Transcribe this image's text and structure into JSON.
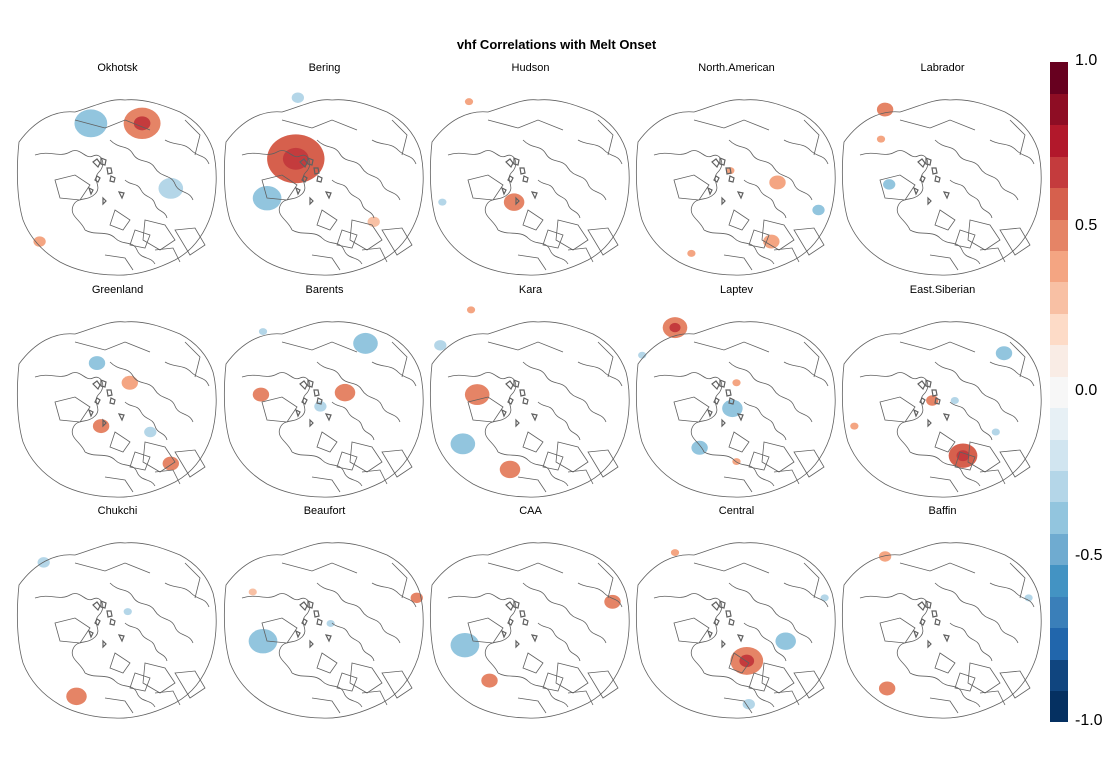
{
  "title": "vhf Correlations with Melt Onset",
  "colorbar": {
    "ticks": [
      "1.0",
      "0.5",
      "0.0",
      "-0.5",
      "-1.0"
    ],
    "tick_values": [
      1.0,
      0.5,
      0.0,
      -0.5,
      -1.0
    ],
    "range": [
      -1.0,
      1.0
    ],
    "colors": [
      "#053061",
      "#10457f",
      "#2166ac",
      "#3a7fb9",
      "#4393c3",
      "#6fabd0",
      "#92c5de",
      "#b4d6e8",
      "#d1e5f0",
      "#e7f0f5",
      "#f7f7f7",
      "#f9ece5",
      "#fddbc7",
      "#f8c0a4",
      "#f4a582",
      "#e58466",
      "#d6604d",
      "#c43b3d",
      "#b2182b",
      "#8e0d24",
      "#67001f"
    ]
  },
  "chart_data": {
    "type": "heatmap",
    "title": "vhf Correlations with Melt Onset",
    "value_range": [
      -1.0,
      1.0
    ],
    "panels": [
      {
        "name": "Okhotsk",
        "blobs": [
          {
            "cx": 0.62,
            "cy": 0.22,
            "r": 0.09,
            "v": 0.5
          },
          {
            "cx": 0.37,
            "cy": 0.22,
            "r": 0.08,
            "v": -0.4
          },
          {
            "cx": 0.76,
            "cy": 0.55,
            "r": 0.06,
            "v": -0.35
          },
          {
            "cx": 0.12,
            "cy": 0.82,
            "r": 0.03,
            "v": 0.4
          }
        ]
      },
      {
        "name": "Bering",
        "blobs": [
          {
            "cx": 0.36,
            "cy": 0.4,
            "r": 0.14,
            "v": 0.55
          },
          {
            "cx": 0.22,
            "cy": 0.6,
            "r": 0.07,
            "v": -0.4
          },
          {
            "cx": 0.37,
            "cy": 0.09,
            "r": 0.03,
            "v": -0.3
          },
          {
            "cx": 0.74,
            "cy": 0.72,
            "r": 0.03,
            "v": 0.3
          }
        ]
      },
      {
        "name": "Hudson",
        "blobs": [
          {
            "cx": 0.42,
            "cy": 0.62,
            "r": 0.05,
            "v": 0.5
          },
          {
            "cx": 0.2,
            "cy": 0.11,
            "r": 0.02,
            "v": 0.4
          },
          {
            "cx": 0.07,
            "cy": 0.62,
            "r": 0.02,
            "v": -0.35
          }
        ]
      },
      {
        "name": "North.American",
        "blobs": [
          {
            "cx": 0.7,
            "cy": 0.52,
            "r": 0.04,
            "v": 0.4
          },
          {
            "cx": 0.47,
            "cy": 0.46,
            "r": 0.02,
            "v": 0.4
          },
          {
            "cx": 0.9,
            "cy": 0.66,
            "r": 0.03,
            "v": -0.4
          },
          {
            "cx": 0.67,
            "cy": 0.82,
            "r": 0.04,
            "v": 0.4
          },
          {
            "cx": 0.28,
            "cy": 0.88,
            "r": 0.02,
            "v": 0.35
          }
        ]
      },
      {
        "name": "Labrador",
        "blobs": [
          {
            "cx": 0.22,
            "cy": 0.15,
            "r": 0.04,
            "v": 0.45
          },
          {
            "cx": 0.2,
            "cy": 0.3,
            "r": 0.02,
            "v": 0.4
          },
          {
            "cx": 0.24,
            "cy": 0.53,
            "r": 0.03,
            "v": -0.4
          }
        ]
      },
      {
        "name": "Greenland",
        "blobs": [
          {
            "cx": 0.4,
            "cy": 0.31,
            "r": 0.04,
            "v": -0.4
          },
          {
            "cx": 0.56,
            "cy": 0.41,
            "r": 0.04,
            "v": 0.4
          },
          {
            "cx": 0.42,
            "cy": 0.63,
            "r": 0.04,
            "v": 0.5
          },
          {
            "cx": 0.66,
            "cy": 0.66,
            "r": 0.03,
            "v": -0.35
          },
          {
            "cx": 0.76,
            "cy": 0.82,
            "r": 0.04,
            "v": 0.45
          }
        ]
      },
      {
        "name": "Barents",
        "blobs": [
          {
            "cx": 0.7,
            "cy": 0.21,
            "r": 0.06,
            "v": -0.4
          },
          {
            "cx": 0.6,
            "cy": 0.46,
            "r": 0.05,
            "v": 0.45
          },
          {
            "cx": 0.19,
            "cy": 0.47,
            "r": 0.04,
            "v": 0.45
          },
          {
            "cx": 0.48,
            "cy": 0.53,
            "r": 0.03,
            "v": -0.35
          },
          {
            "cx": 0.2,
            "cy": 0.15,
            "r": 0.02,
            "v": -0.3
          }
        ]
      },
      {
        "name": "Kara",
        "blobs": [
          {
            "cx": 0.24,
            "cy": 0.47,
            "r": 0.06,
            "v": 0.45
          },
          {
            "cx": 0.17,
            "cy": 0.72,
            "r": 0.06,
            "v": -0.4
          },
          {
            "cx": 0.4,
            "cy": 0.85,
            "r": 0.05,
            "v": 0.45
          },
          {
            "cx": 0.06,
            "cy": 0.22,
            "r": 0.03,
            "v": -0.35
          },
          {
            "cx": 0.21,
            "cy": 0.04,
            "r": 0.02,
            "v": 0.4
          }
        ]
      },
      {
        "name": "Laptev",
        "blobs": [
          {
            "cx": 0.2,
            "cy": 0.13,
            "r": 0.06,
            "v": 0.5
          },
          {
            "cx": 0.48,
            "cy": 0.54,
            "r": 0.05,
            "v": -0.4
          },
          {
            "cx": 0.32,
            "cy": 0.74,
            "r": 0.04,
            "v": -0.45
          },
          {
            "cx": 0.5,
            "cy": 0.41,
            "r": 0.02,
            "v": 0.4
          },
          {
            "cx": 0.5,
            "cy": 0.81,
            "r": 0.02,
            "v": 0.4
          },
          {
            "cx": 0.04,
            "cy": 0.27,
            "r": 0.02,
            "v": -0.35
          }
        ]
      },
      {
        "name": "East.Siberian",
        "blobs": [
          {
            "cx": 0.6,
            "cy": 0.78,
            "r": 0.07,
            "v": 0.55
          },
          {
            "cx": 0.8,
            "cy": 0.26,
            "r": 0.04,
            "v": -0.4
          },
          {
            "cx": 0.45,
            "cy": 0.5,
            "r": 0.03,
            "v": 0.45
          },
          {
            "cx": 0.56,
            "cy": 0.5,
            "r": 0.02,
            "v": -0.35
          },
          {
            "cx": 0.07,
            "cy": 0.63,
            "r": 0.02,
            "v": 0.4
          },
          {
            "cx": 0.76,
            "cy": 0.66,
            "r": 0.02,
            "v": -0.3
          }
        ]
      },
      {
        "name": "Chukchi",
        "blobs": [
          {
            "cx": 0.14,
            "cy": 0.2,
            "r": 0.03,
            "v": -0.35
          },
          {
            "cx": 0.3,
            "cy": 0.88,
            "r": 0.05,
            "v": 0.45
          },
          {
            "cx": 0.55,
            "cy": 0.45,
            "r": 0.02,
            "v": -0.3
          }
        ]
      },
      {
        "name": "Beaufort",
        "blobs": [
          {
            "cx": 0.2,
            "cy": 0.6,
            "r": 0.07,
            "v": -0.4
          },
          {
            "cx": 0.95,
            "cy": 0.38,
            "r": 0.03,
            "v": 0.45
          },
          {
            "cx": 0.53,
            "cy": 0.51,
            "r": 0.02,
            "v": -0.35
          },
          {
            "cx": 0.15,
            "cy": 0.35,
            "r": 0.02,
            "v": 0.3
          }
        ]
      },
      {
        "name": "CAA",
        "blobs": [
          {
            "cx": 0.18,
            "cy": 0.62,
            "r": 0.07,
            "v": -0.45
          },
          {
            "cx": 0.9,
            "cy": 0.4,
            "r": 0.04,
            "v": 0.45
          },
          {
            "cx": 0.3,
            "cy": 0.8,
            "r": 0.04,
            "v": 0.45
          }
        ]
      },
      {
        "name": "Central",
        "blobs": [
          {
            "cx": 0.55,
            "cy": 0.7,
            "r": 0.08,
            "v": 0.5
          },
          {
            "cx": 0.74,
            "cy": 0.6,
            "r": 0.05,
            "v": -0.4
          },
          {
            "cx": 0.56,
            "cy": 0.92,
            "r": 0.03,
            "v": -0.35
          },
          {
            "cx": 0.2,
            "cy": 0.15,
            "r": 0.02,
            "v": 0.4
          },
          {
            "cx": 0.93,
            "cy": 0.38,
            "r": 0.02,
            "v": -0.3
          }
        ]
      },
      {
        "name": "Baffin",
        "blobs": [
          {
            "cx": 0.22,
            "cy": 0.17,
            "r": 0.03,
            "v": 0.4
          },
          {
            "cx": 0.23,
            "cy": 0.84,
            "r": 0.04,
            "v": 0.45
          },
          {
            "cx": 0.92,
            "cy": 0.38,
            "r": 0.02,
            "v": -0.3
          }
        ]
      }
    ]
  }
}
